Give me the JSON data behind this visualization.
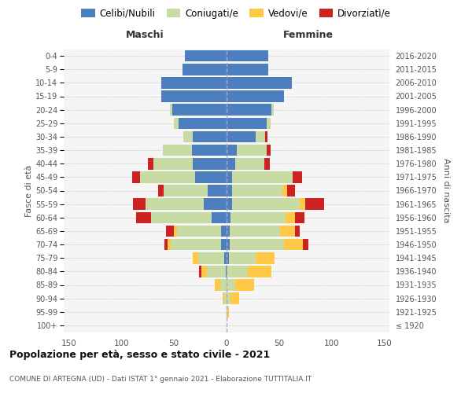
{
  "age_groups": [
    "100+",
    "95-99",
    "90-94",
    "85-89",
    "80-84",
    "75-79",
    "70-74",
    "65-69",
    "60-64",
    "55-59",
    "50-54",
    "45-49",
    "40-44",
    "35-39",
    "30-34",
    "25-29",
    "20-24",
    "15-19",
    "10-14",
    "5-9",
    "0-4"
  ],
  "birth_years": [
    "≤ 1920",
    "1921-1925",
    "1926-1930",
    "1931-1935",
    "1936-1940",
    "1941-1945",
    "1946-1950",
    "1951-1955",
    "1956-1960",
    "1961-1965",
    "1966-1970",
    "1971-1975",
    "1976-1980",
    "1981-1985",
    "1986-1990",
    "1991-1995",
    "1996-2000",
    "2001-2005",
    "2006-2010",
    "2011-2015",
    "2016-2020"
  ],
  "colors": {
    "celibe": "#4d7ebf",
    "coniugato": "#c8dba5",
    "vedovo": "#ffc845",
    "divorziato": "#cc2222"
  },
  "maschi": {
    "celibe": [
      0,
      0,
      0,
      0,
      1,
      2,
      5,
      5,
      14,
      22,
      18,
      30,
      32,
      33,
      32,
      46,
      52,
      62,
      62,
      42,
      40
    ],
    "coniugato": [
      0,
      0,
      2,
      6,
      18,
      25,
      48,
      42,
      58,
      55,
      42,
      52,
      38,
      28,
      9,
      4,
      2,
      0,
      0,
      0,
      0
    ],
    "vedovo": [
      0,
      0,
      2,
      5,
      5,
      5,
      3,
      3,
      0,
      0,
      0,
      0,
      0,
      0,
      0,
      0,
      0,
      0,
      0,
      0,
      0
    ],
    "divorziato": [
      0,
      0,
      0,
      0,
      2,
      0,
      3,
      8,
      14,
      12,
      5,
      8,
      5,
      0,
      0,
      0,
      0,
      0,
      0,
      0,
      0
    ]
  },
  "femmine": {
    "nubile": [
      0,
      0,
      0,
      0,
      0,
      2,
      3,
      3,
      4,
      5,
      5,
      5,
      8,
      10,
      28,
      38,
      43,
      55,
      62,
      40,
      40
    ],
    "coniugata": [
      0,
      0,
      4,
      8,
      20,
      26,
      52,
      48,
      52,
      65,
      48,
      58,
      28,
      28,
      9,
      4,
      2,
      0,
      0,
      0,
      0
    ],
    "vedova": [
      0,
      2,
      8,
      18,
      23,
      18,
      18,
      14,
      9,
      5,
      5,
      0,
      0,
      0,
      0,
      0,
      0,
      0,
      0,
      0,
      0
    ],
    "divorziata": [
      0,
      0,
      0,
      0,
      0,
      0,
      5,
      5,
      9,
      18,
      7,
      9,
      5,
      4,
      2,
      0,
      0,
      0,
      0,
      0,
      0
    ]
  },
  "title": "Popolazione per età, sesso e stato civile - 2021",
  "subtitle": "COMUNE DI ARTEGNA (UD) - Dati ISTAT 1° gennaio 2021 - Elaborazione TUTTITALIA.IT",
  "xlabel_left": "Maschi",
  "xlabel_right": "Femmine",
  "ylabel_left": "Fasce di età",
  "ylabel_right": "Anni di nascita",
  "xlim": 155,
  "bg_color": "#f5f5f5",
  "grid_color": "#cccccc"
}
